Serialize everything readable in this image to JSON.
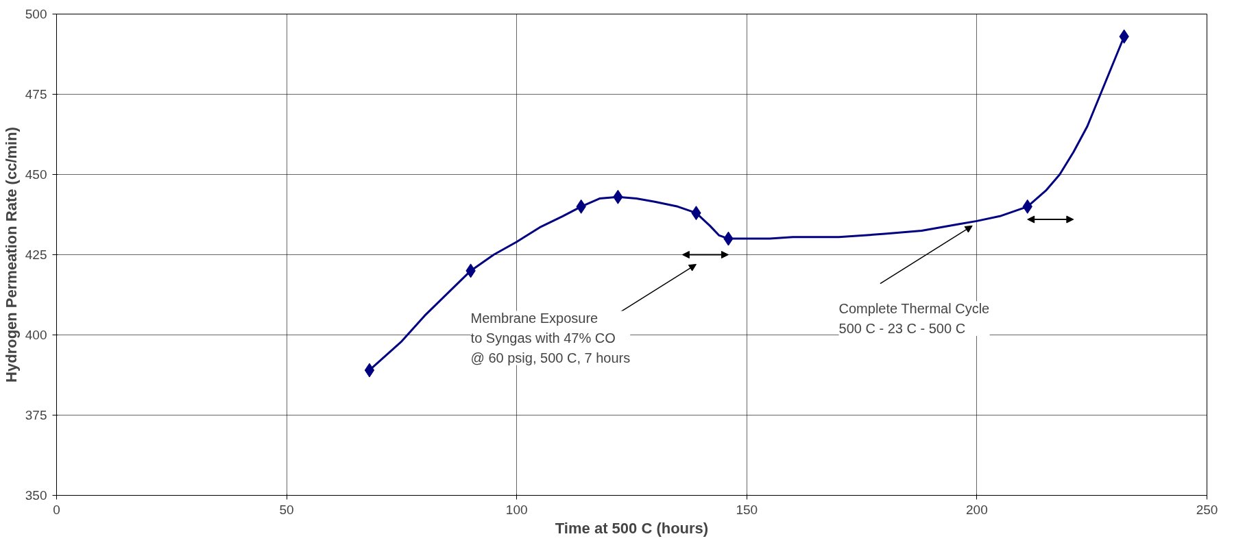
{
  "chart_data": {
    "type": "line",
    "xlabel": "Time at 500 C (hours)",
    "ylabel": "Hydrogen Permeation Rate (cc/min)",
    "xlim": [
      0,
      250
    ],
    "xticks": [
      0,
      50,
      100,
      150,
      200,
      250
    ],
    "ylim": [
      350,
      500
    ],
    "yticks": [
      350,
      375,
      400,
      425,
      450,
      475,
      500
    ],
    "grid": true,
    "series": [
      {
        "color": "#000080",
        "marker": "none",
        "x": [
          68,
          75,
          80,
          85,
          90,
          95,
          100,
          105,
          110,
          114,
          118,
          122,
          126,
          130,
          135,
          139,
          142,
          144,
          146,
          155,
          160,
          170,
          180,
          188,
          196,
          200,
          205,
          211,
          215,
          218,
          221,
          224,
          226,
          228,
          230,
          232
        ],
        "values": [
          389,
          398,
          406,
          413,
          420,
          425,
          429,
          433.5,
          437,
          440,
          442.5,
          443,
          442.5,
          441.5,
          440,
          438,
          434,
          431,
          430,
          430,
          430.5,
          430.5,
          431.5,
          432.5,
          434.5,
          435.5,
          437,
          440,
          445,
          450,
          457,
          465,
          472,
          479,
          486,
          493
        ]
      },
      {
        "type": "scatter",
        "color": "#000080",
        "marker": "diamond",
        "x": [
          68,
          90,
          114,
          122,
          139,
          146,
          211,
          232
        ],
        "values": [
          389,
          420,
          440,
          443,
          438,
          430,
          440,
          493
        ]
      }
    ],
    "annotations": [
      "Membrane Exposure\nto Syngas with 47% CO\n@ 60 psig, 500 C, 7 hours",
      "Complete Thermal Cycle\n500 C - 23 C - 500 C"
    ]
  }
}
